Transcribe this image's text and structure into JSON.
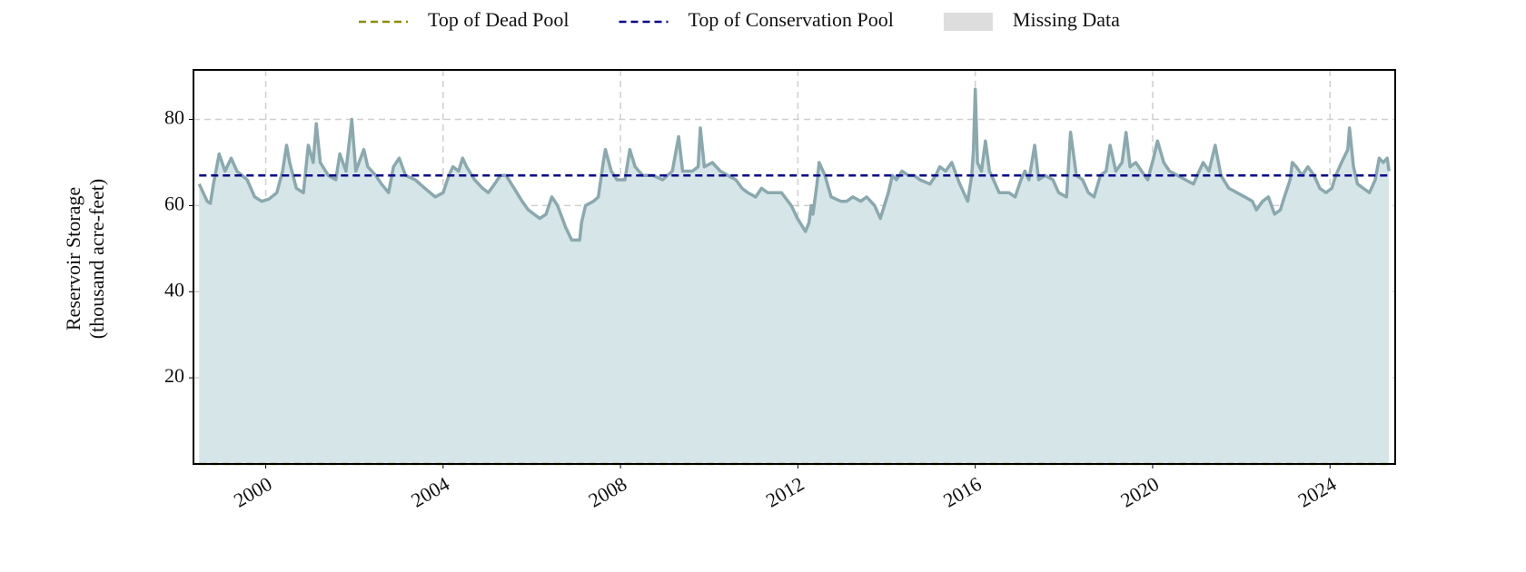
{
  "chart_data": {
    "type": "line",
    "ylabel": [
      "Reservoir Storage",
      "(thousand acre-feet)"
    ],
    "xlim": [
      1998.37,
      2025.47
    ],
    "xticks": [
      2000,
      2004,
      2008,
      2012,
      2016,
      2020,
      2024
    ],
    "ylim": [
      0,
      91.5
    ],
    "yticks": [
      20,
      40,
      60,
      80
    ],
    "grid": true,
    "legend": "top",
    "fill_color": "#d6e5e8",
    "series": [
      {
        "name": "Reservoir Storage",
        "color": "#8aa9ae",
        "fill": true,
        "legend": false,
        "x": [
          1998.5,
          1998.68,
          1998.75,
          1998.82,
          1998.95,
          1999.08,
          1999.22,
          1999.35,
          1999.58,
          1999.75,
          1999.91,
          2000.07,
          2000.25,
          2000.38,
          2000.47,
          2000.54,
          2000.69,
          2000.85,
          2000.96,
          2001.07,
          2001.14,
          2001.23,
          2001.41,
          2001.58,
          2001.67,
          2001.81,
          2001.94,
          2002.03,
          2002.21,
          2002.3,
          2002.48,
          2002.61,
          2002.77,
          2002.88,
          2003.01,
          2003.15,
          2003.37,
          2003.59,
          2003.82,
          2004.0,
          2004.13,
          2004.22,
          2004.35,
          2004.44,
          2004.53,
          2004.71,
          2004.89,
          2005.02,
          2005.16,
          2005.29,
          2005.42,
          2005.6,
          2005.78,
          2005.92,
          2006.05,
          2006.18,
          2006.32,
          2006.45,
          2006.58,
          2006.76,
          2006.9,
          2007.08,
          2007.12,
          2007.21,
          2007.39,
          2007.5,
          2007.61,
          2007.66,
          2007.79,
          2007.92,
          2008.1,
          2008.21,
          2008.33,
          2008.5,
          2008.73,
          2008.95,
          2009.17,
          2009.31,
          2009.4,
          2009.62,
          2009.75,
          2009.8,
          2009.89,
          2010.07,
          2010.25,
          2010.42,
          2010.6,
          2010.74,
          2010.87,
          2011.05,
          2011.18,
          2011.32,
          2011.63,
          2011.85,
          2011.99,
          2012.17,
          2012.25,
          2012.3,
          2012.34,
          2012.43,
          2012.48,
          2012.61,
          2012.75,
          2012.97,
          2013.1,
          2013.24,
          2013.42,
          2013.55,
          2013.73,
          2013.86,
          2013.95,
          2014.04,
          2014.13,
          2014.22,
          2014.35,
          2014.49,
          2014.62,
          2014.75,
          2014.98,
          2015.11,
          2015.2,
          2015.33,
          2015.47,
          2015.65,
          2015.83,
          2015.92,
          2015.96,
          2016.0,
          2016.05,
          2016.14,
          2016.23,
          2016.32,
          2016.41,
          2016.54,
          2016.76,
          2016.9,
          2017.03,
          2017.12,
          2017.21,
          2017.34,
          2017.43,
          2017.57,
          2017.75,
          2017.88,
          2018.06,
          2018.15,
          2018.28,
          2018.42,
          2018.55,
          2018.68,
          2018.82,
          2018.95,
          2019.04,
          2019.17,
          2019.31,
          2019.4,
          2019.49,
          2019.62,
          2019.75,
          2019.89,
          2020.02,
          2020.11,
          2020.25,
          2020.38,
          2020.56,
          2020.74,
          2020.92,
          2021.05,
          2021.14,
          2021.27,
          2021.41,
          2021.54,
          2021.72,
          2021.9,
          2022.08,
          2022.25,
          2022.34,
          2022.48,
          2022.61,
          2022.75,
          2022.88,
          2022.97,
          2023.1,
          2023.15,
          2023.24,
          2023.37,
          2023.5,
          2023.64,
          2023.77,
          2023.91,
          2024.04,
          2024.13,
          2024.26,
          2024.4,
          2024.44,
          2024.53,
          2024.62,
          2024.75,
          2024.89,
          2025.02,
          2025.11,
          2025.2,
          2025.29,
          2025.33
        ],
        "values": [
          65,
          61,
          60.5,
          65,
          72,
          68,
          71,
          68,
          66,
          62,
          61,
          61.5,
          63,
          68,
          74,
          70,
          64,
          63,
          74,
          70,
          79,
          70,
          67,
          66,
          72,
          68,
          80,
          68,
          73,
          69,
          67,
          65,
          63,
          69,
          71,
          67,
          66,
          64,
          62,
          63,
          67,
          69,
          68,
          71,
          69,
          66,
          64,
          63,
          65,
          67,
          67,
          64,
          61,
          59,
          58,
          57,
          58,
          62,
          60,
          55,
          52,
          52,
          56,
          60,
          61,
          62,
          70,
          73,
          68,
          66,
          66,
          73,
          69,
          67,
          67,
          66,
          68,
          76,
          68,
          68,
          69,
          78,
          69,
          70,
          68,
          67,
          66,
          64,
          63,
          62,
          64,
          63,
          63,
          60,
          57,
          54,
          56,
          60,
          58,
          65,
          70,
          67,
          62,
          61,
          61,
          62,
          61,
          62,
          60,
          57,
          60,
          63,
          67,
          66,
          68,
          67,
          67,
          66,
          65,
          67,
          69,
          68,
          70,
          65,
          61,
          67,
          73,
          87,
          70,
          68,
          75,
          68,
          66,
          63,
          63,
          62,
          66,
          68,
          66,
          74,
          66,
          67,
          66,
          63,
          62,
          77,
          67,
          66,
          63,
          62,
          67,
          68,
          74,
          68,
          70,
          77,
          69,
          70,
          68,
          66,
          71,
          75,
          70,
          68,
          67,
          66,
          65,
          68,
          70,
          68,
          74,
          67,
          64,
          63,
          62,
          61,
          59,
          61,
          62,
          58,
          59,
          62,
          66,
          70,
          69,
          67,
          69,
          67,
          64,
          63,
          64,
          67,
          70,
          73,
          78,
          69,
          65,
          64,
          63,
          66,
          71,
          70,
          71,
          68
        ]
      },
      {
        "name": "Top of Dead Pool",
        "color": "#8b8b00",
        "dashed": true,
        "x": [
          1998.5,
          2025.33
        ],
        "values": [
          0,
          0
        ]
      },
      {
        "name": "Top of Conservation Pool",
        "color": "#00008b",
        "dashed": true,
        "x": [
          1998.5,
          2025.33
        ],
        "values": [
          67,
          67
        ]
      }
    ],
    "missing_data": {
      "name": "Missing Data",
      "color": "#dddddd"
    }
  }
}
